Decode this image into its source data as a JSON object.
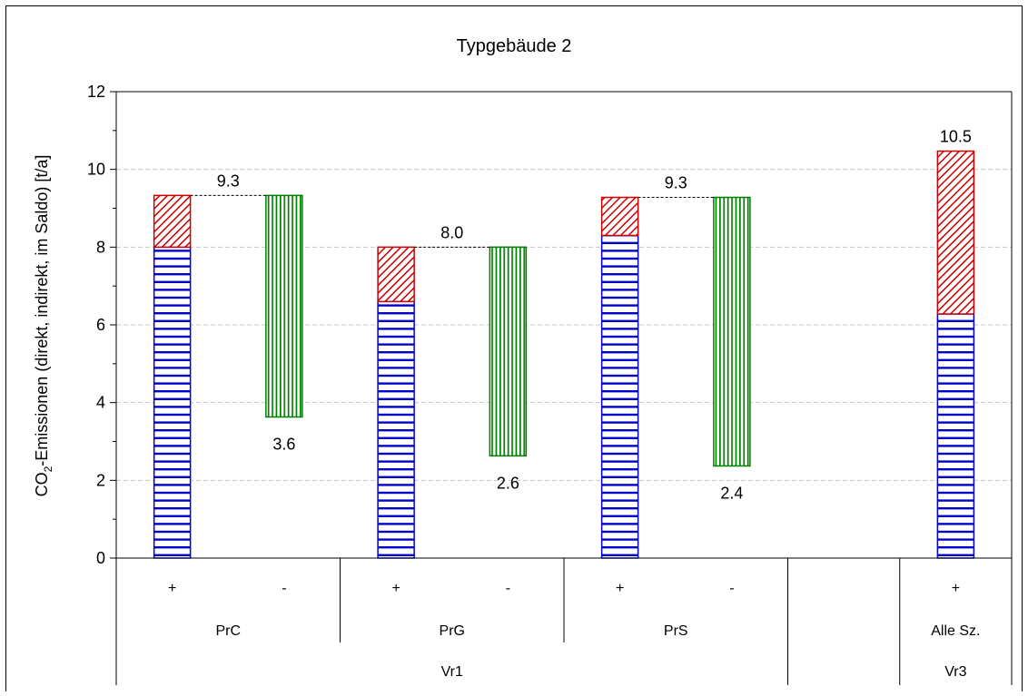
{
  "chart_data": {
    "type": "bar",
    "title": "Typgebäude 2",
    "ylabel_main": "CO",
    "ylabel_sub": "2",
    "ylabel_rest": "-Emissionen (direkt, indirekt, im Saldo) [t/a]",
    "ylim": [
      0,
      12
    ],
    "yticks": [
      "0",
      "2",
      "4",
      "6",
      "8",
      "10",
      "12"
    ],
    "grid": true,
    "colors": {
      "blue": "#0000cc",
      "red": "#cc0000",
      "green": "#008000",
      "grid": "#c8c8c8"
    },
    "x_level1": [
      "+",
      "-",
      "+",
      "-",
      "+",
      "-",
      "",
      "+"
    ],
    "x_level2": [
      "PrC",
      "PrG",
      "PrS",
      "",
      "Alle Sz."
    ],
    "x_level3": [
      "Vr1",
      "Vr3"
    ],
    "bars": [
      {
        "slot": 0,
        "sign": "+",
        "blue": 8.0,
        "red_top": 9.33
      },
      {
        "slot": 1,
        "sign": "-",
        "green_bottom": 3.63,
        "green_top": 9.33
      },
      {
        "slot": 2,
        "sign": "+",
        "blue": 6.6,
        "red_top": 8.0
      },
      {
        "slot": 3,
        "sign": "-",
        "green_bottom": 2.63,
        "green_top": 8.0
      },
      {
        "slot": 4,
        "sign": "+",
        "blue": 8.3,
        "red_top": 9.28
      },
      {
        "slot": 5,
        "sign": "-",
        "green_bottom": 2.37,
        "green_top": 9.28
      },
      {
        "slot": 7,
        "sign": "+",
        "blue": 6.28,
        "red_top": 10.47
      }
    ],
    "data_labels": [
      {
        "text": "9.3",
        "slot": 0.5,
        "y": 9.33,
        "pos": "above"
      },
      {
        "text": "3.6",
        "slot": 1,
        "y": 3.63,
        "pos": "below"
      },
      {
        "text": "8.0",
        "slot": 2.5,
        "y": 8.0,
        "pos": "above"
      },
      {
        "text": "2.6",
        "slot": 3,
        "y": 2.63,
        "pos": "below"
      },
      {
        "text": "9.3",
        "slot": 4.5,
        "y": 9.28,
        "pos": "above"
      },
      {
        "text": "2.4",
        "slot": 5,
        "y": 2.37,
        "pos": "below"
      },
      {
        "text": "10.5",
        "slot": 7,
        "y": 10.47,
        "pos": "above"
      }
    ]
  }
}
